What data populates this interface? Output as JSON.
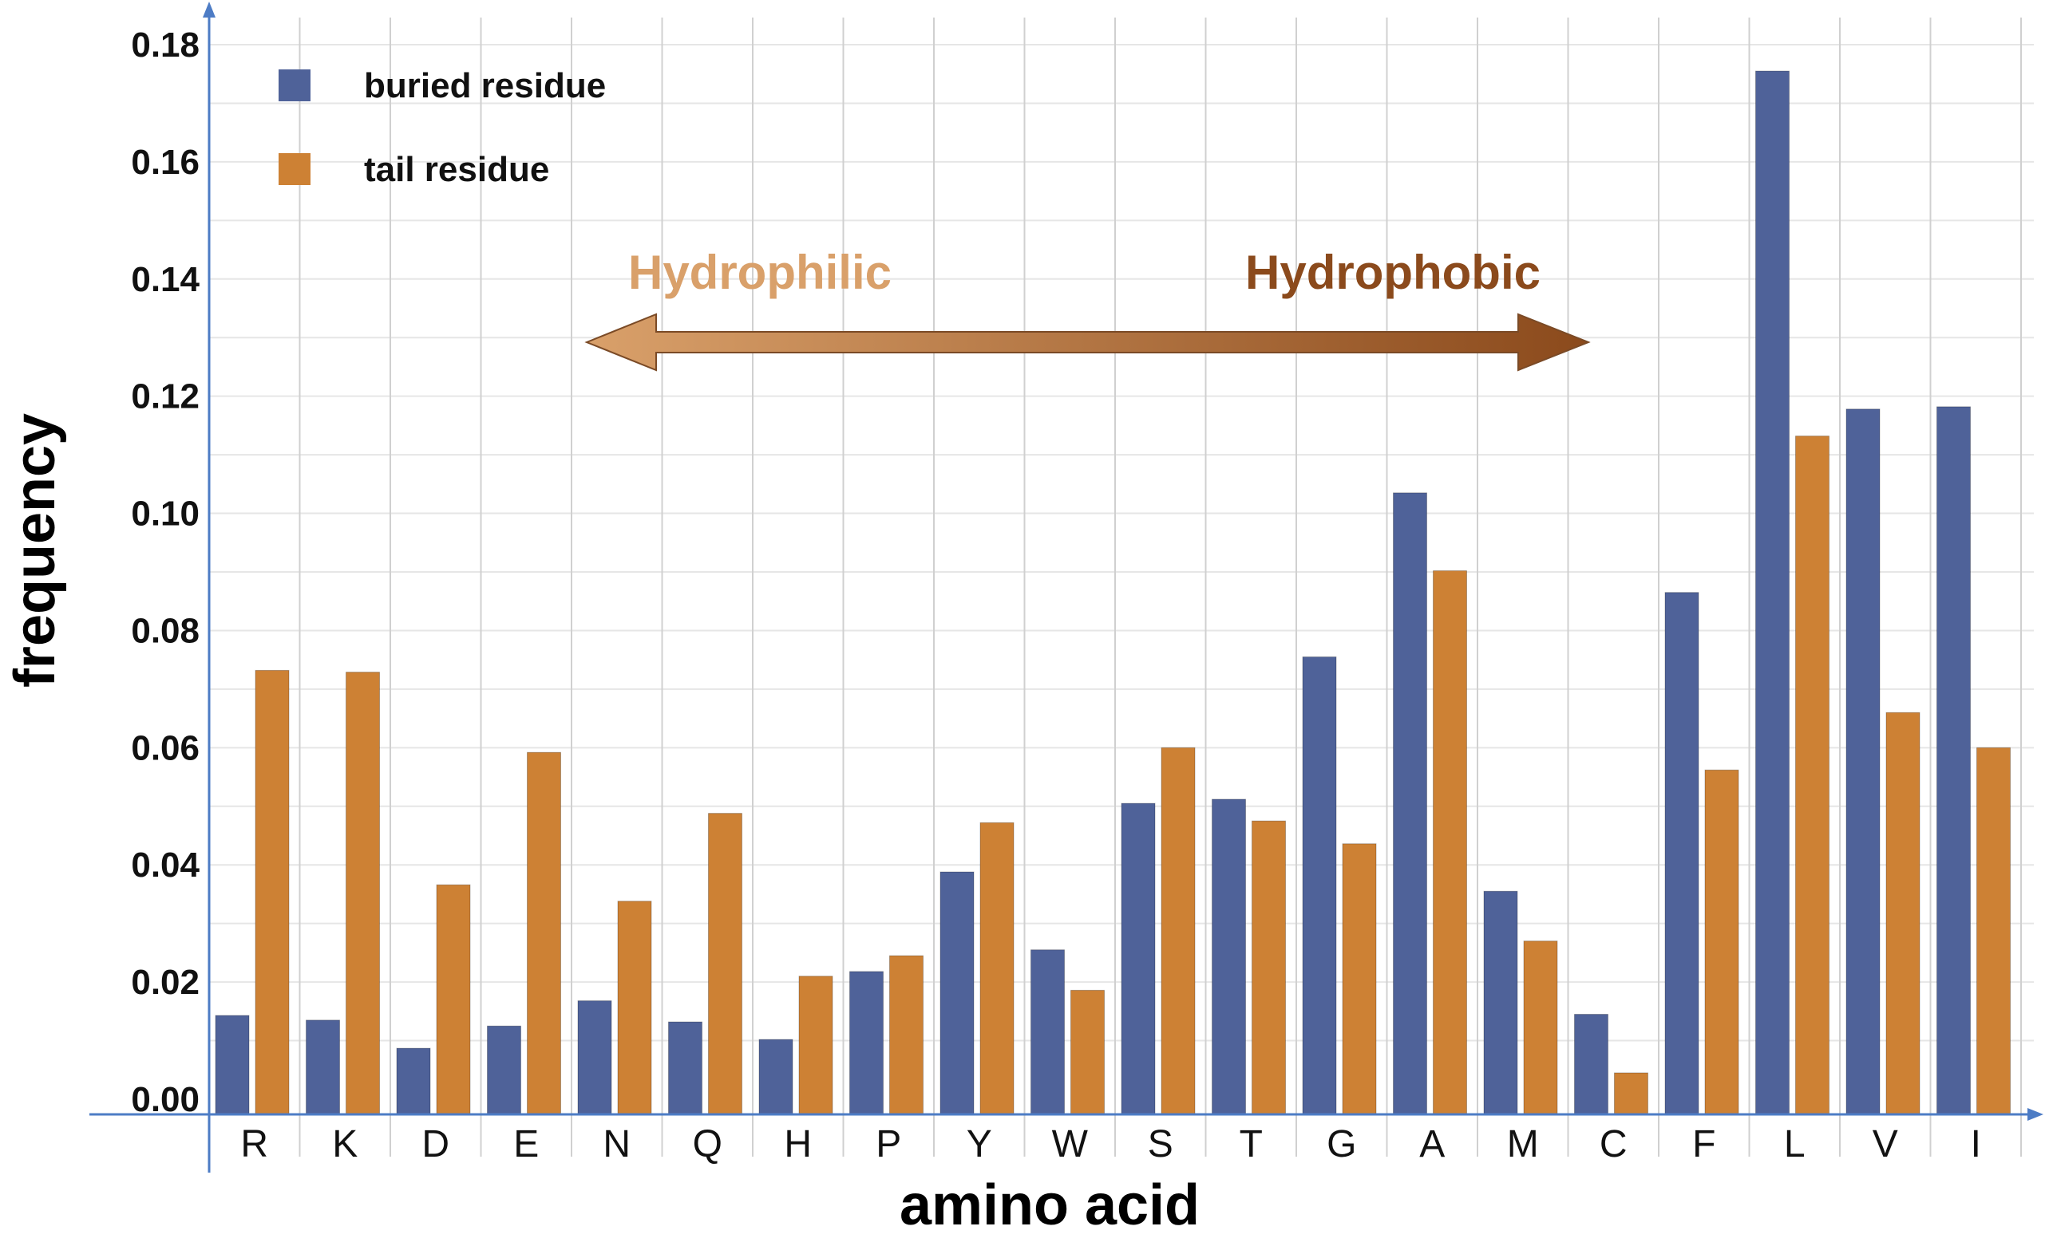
{
  "chart_data": {
    "type": "bar",
    "xlabel": "amino acid",
    "ylabel": "frequency",
    "ylim": [
      0,
      0.18
    ],
    "yticks": [
      "0.00",
      "0.02",
      "0.04",
      "0.06",
      "0.08",
      "0.10",
      "0.12",
      "0.14",
      "0.16",
      "0.18"
    ],
    "grid": "on",
    "legend_position": "top-left",
    "categories": [
      "R",
      "K",
      "D",
      "E",
      "N",
      "Q",
      "H",
      "P",
      "Y",
      "W",
      "S",
      "T",
      "G",
      "A",
      "M",
      "C",
      "F",
      "L",
      "V",
      "I"
    ],
    "series": [
      {
        "name": "buried residue",
        "color": "#4f6299",
        "values": [
          0.0143,
          0.0135,
          0.0087,
          0.0125,
          0.0168,
          0.0132,
          0.0102,
          0.0218,
          0.0388,
          0.0255,
          0.0505,
          0.0512,
          0.0755,
          0.1035,
          0.0355,
          0.0145,
          0.0865,
          0.1755,
          0.1178,
          0.1182
        ]
      },
      {
        "name": "tail residue",
        "color": "#cd8134",
        "values": [
          0.0732,
          0.0729,
          0.0366,
          0.0592,
          0.0338,
          0.0488,
          0.021,
          0.0245,
          0.0472,
          0.0186,
          0.06,
          0.0475,
          0.0436,
          0.0902,
          0.027,
          0.0045,
          0.0562,
          0.1132,
          0.066,
          0.06
        ]
      }
    ],
    "annotations": {
      "left": {
        "text": "Hydrophilic",
        "color": "#d9a06a"
      },
      "right": {
        "text": "Hydrophobic",
        "color": "#8b4a1c"
      },
      "arrow_gradient": [
        "#d9a06a",
        "#8b4a1c"
      ]
    }
  }
}
